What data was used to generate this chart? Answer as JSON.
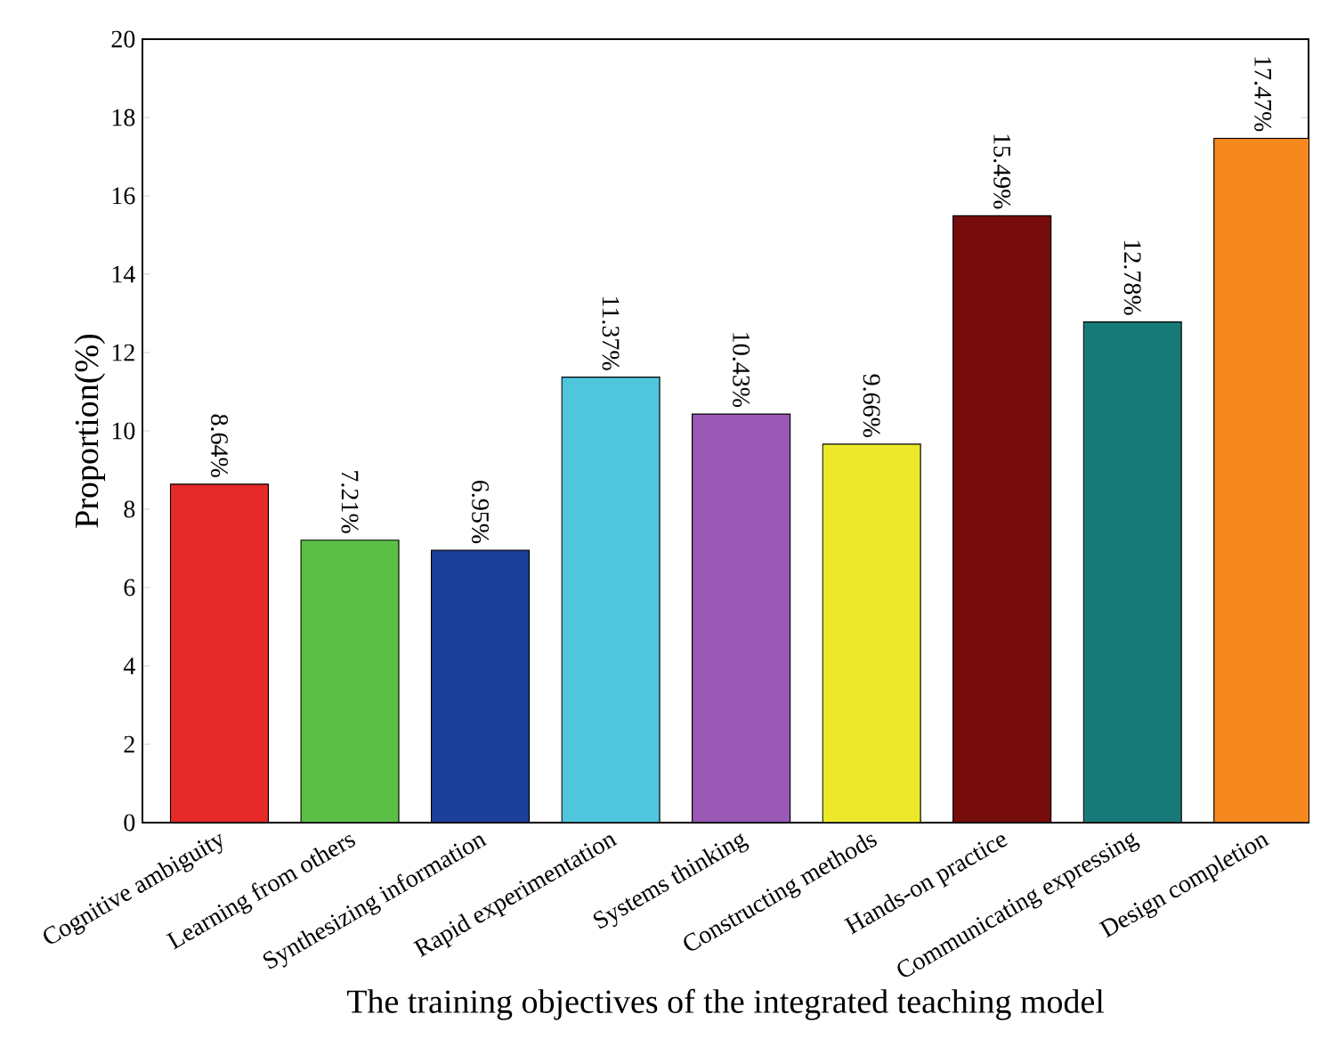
{
  "chart_data": {
    "type": "bar",
    "xlabel": "The training objectives of the integrated teaching model",
    "ylabel": "Proportion(%)",
    "categories": [
      "Cognitive ambiguity",
      "Learning from others",
      "Synthesizing information",
      "Rapid experimentation",
      "Systems thinking",
      "Constructing methods",
      "Hands-on practice",
      "Communicating expressing",
      "Design completion"
    ],
    "values": [
      8.64,
      7.21,
      6.95,
      11.37,
      10.43,
      9.66,
      15.49,
      12.78,
      17.47
    ],
    "value_labels": [
      "8.64%",
      "7.21%",
      "6.95%",
      "11.37%",
      "10.43%",
      "9.66%",
      "15.49%",
      "12.78%",
      "17.47%"
    ],
    "colors": [
      "#e62a2a",
      "#5bbf45",
      "#1d3f9c",
      "#4fc6dc",
      "#9b59b6",
      "#ece92a",
      "#760c0c",
      "#187a78",
      "#f5891e"
    ],
    "ylim": [
      0,
      20
    ],
    "yticks": [
      0,
      2,
      4,
      6,
      8,
      10,
      12,
      14,
      16,
      18,
      20
    ]
  }
}
